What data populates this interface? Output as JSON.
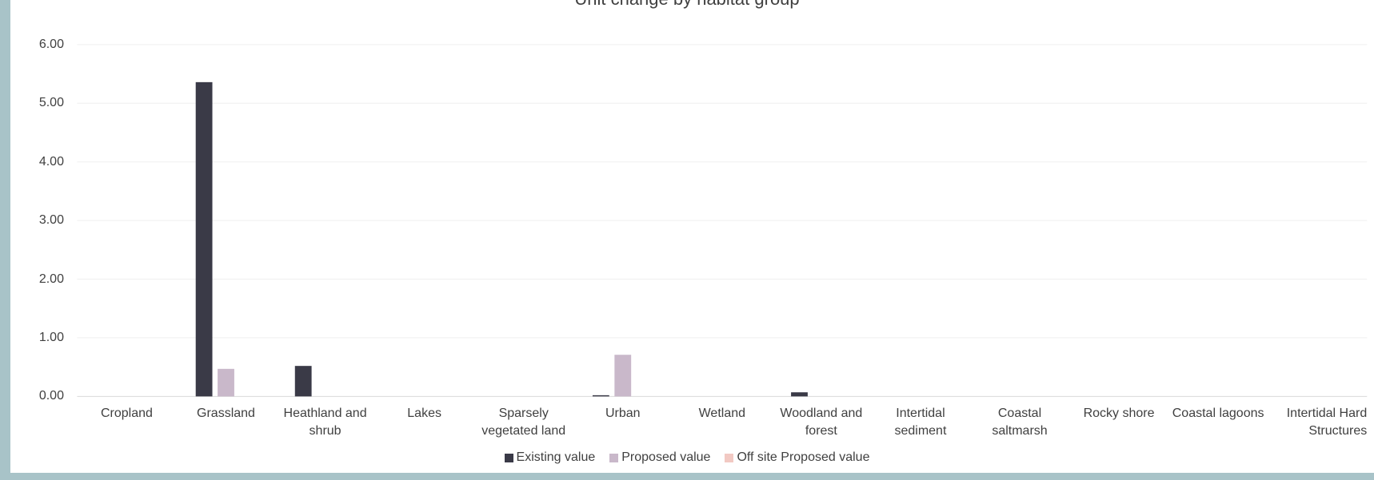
{
  "chart_data": {
    "type": "bar",
    "title": "Unit change by habitat group",
    "categories": [
      "Cropland",
      "Grassland",
      "Heathland and shrub",
      "Lakes",
      "Sparsely vegetated land",
      "Urban",
      "Wetland",
      "Woodland and forest",
      "Intertidal sediment",
      "Coastal saltmarsh",
      "Rocky shore",
      "Coastal lagoons",
      "Intertidal Hard Structures"
    ],
    "series": [
      {
        "name": "Existing value",
        "color": "#3a3a47",
        "values": [
          0,
          5.36,
          0.52,
          0,
          0,
          0.02,
          0,
          0.07,
          0,
          0,
          0,
          0,
          0
        ]
      },
      {
        "name": "Proposed value",
        "color": "#c9b8ca",
        "values": [
          0,
          0.47,
          0,
          0,
          0,
          0.71,
          0,
          0,
          0,
          0,
          0,
          0,
          0
        ]
      },
      {
        "name": "Off site Proposed value",
        "color": "#f2c9c3",
        "values": [
          0,
          0,
          0,
          0,
          0,
          0,
          0,
          0,
          0,
          0,
          0,
          0,
          0
        ]
      }
    ],
    "ylim": [
      0,
      6
    ],
    "yticks": [
      {
        "value": 0,
        "label": "0.00"
      },
      {
        "value": 1,
        "label": "1.00"
      },
      {
        "value": 2,
        "label": "2.00"
      },
      {
        "value": 3,
        "label": "3.00"
      },
      {
        "value": 4,
        "label": "4.00"
      },
      {
        "value": 5,
        "label": "5.00"
      },
      {
        "value": 6,
        "label": "6.00"
      }
    ],
    "grid": true,
    "legend": "bottom"
  }
}
